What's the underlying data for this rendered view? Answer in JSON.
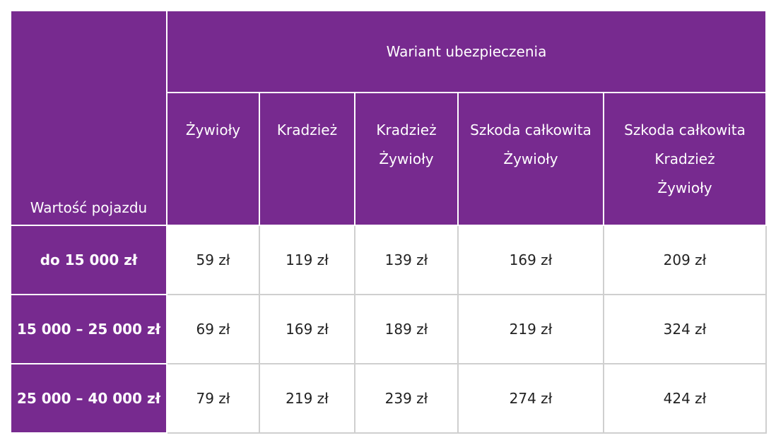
{
  "colors": {
    "purple": "#772a8f",
    "white": "#ffffff",
    "grid": "#cfcfcf"
  },
  "table": {
    "corner_label": "Wartość pojazdu",
    "group_header": "Wariant ubezpieczenia",
    "columns": [
      [
        "Żywioły"
      ],
      [
        "Kradzież"
      ],
      [
        "Kradzież",
        "Żywioły"
      ],
      [
        "Szkoda całkowita",
        "Żywioły"
      ],
      [
        "Szkoda całkowita",
        "Kradzież",
        "Żywioły"
      ]
    ],
    "rows": [
      {
        "label": "do 15 000 zł",
        "values": [
          "59 zł",
          "119 zł",
          "139 zł",
          "169 zł",
          "209 zł"
        ]
      },
      {
        "label": "15 000 – 25 000 zł",
        "values": [
          "69 zł",
          "169 zł",
          "189 zł",
          "219 zł",
          "324 zł"
        ]
      },
      {
        "label": "25 000 – 40 000 zł",
        "values": [
          "79 zł",
          "219 zł",
          "239 zł",
          "274 zł",
          "424 zł"
        ]
      }
    ]
  }
}
